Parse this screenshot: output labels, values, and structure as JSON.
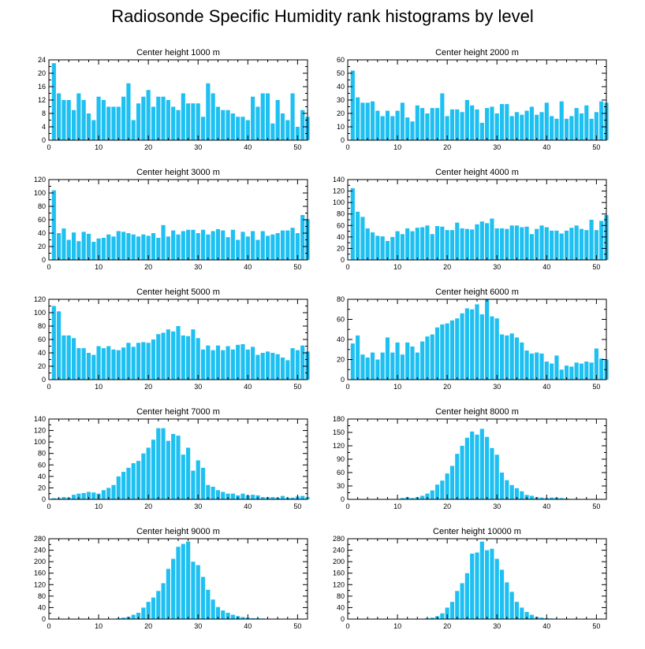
{
  "title": "Radiosonde Specific Humidity rank histograms by level",
  "bar_color": "#1ec0f2",
  "chart_data": [
    {
      "type": "bar",
      "title": "Center height 1000 m",
      "xlim": [
        0,
        52
      ],
      "xticks": [
        0,
        10,
        20,
        30,
        40,
        50
      ],
      "ylim": [
        0,
        24
      ],
      "yticks": [
        0,
        4,
        8,
        12,
        16,
        20,
        24
      ],
      "x_start": 1,
      "values": [
        23,
        14,
        12,
        12,
        9,
        14,
        12,
        8,
        6,
        13,
        12,
        10,
        10,
        10,
        13,
        17,
        6,
        11,
        13,
        15,
        10,
        13,
        13,
        12,
        10,
        9,
        14,
        11,
        11,
        11,
        7,
        17,
        14,
        10,
        9,
        9,
        8,
        7,
        7,
        6,
        13,
        10,
        14,
        14,
        5,
        12,
        8,
        6,
        14,
        4,
        9,
        7
      ]
    },
    {
      "type": "bar",
      "title": "Center height 2000 m",
      "xlim": [
        0,
        52
      ],
      "xticks": [
        0,
        10,
        20,
        30,
        40,
        50
      ],
      "ylim": [
        0,
        60
      ],
      "yticks": [
        0,
        10,
        20,
        30,
        40,
        50,
        60
      ],
      "x_start": 1,
      "values": [
        52,
        32,
        28,
        28,
        29,
        22,
        18,
        22,
        18,
        22,
        28,
        17,
        14,
        26,
        24,
        20,
        24,
        24,
        35,
        18,
        23,
        23,
        21,
        30,
        26,
        23,
        13,
        24,
        25,
        20,
        27,
        27,
        18,
        21,
        19,
        22,
        25,
        19,
        21,
        28,
        18,
        16,
        29,
        16,
        18,
        24,
        20,
        26,
        16,
        21,
        29,
        28
      ]
    },
    {
      "type": "bar",
      "title": "Center height 3000 m",
      "xlim": [
        0,
        52
      ],
      "xticks": [
        0,
        10,
        20,
        30,
        40,
        50
      ],
      "ylim": [
        0,
        120
      ],
      "yticks": [
        0,
        20,
        40,
        60,
        80,
        100,
        120
      ],
      "x_start": 1,
      "values": [
        104,
        40,
        47,
        30,
        41,
        28,
        42,
        39,
        27,
        32,
        33,
        38,
        35,
        43,
        42,
        40,
        38,
        35,
        38,
        36,
        40,
        33,
        52,
        35,
        44,
        38,
        43,
        45,
        45,
        40,
        45,
        38,
        43,
        46,
        44,
        34,
        45,
        30,
        42,
        35,
        43,
        30,
        43,
        36,
        38,
        40,
        44,
        44,
        48,
        40,
        67,
        61
      ]
    },
    {
      "type": "bar",
      "title": "Center height 4000 m",
      "xlim": [
        0,
        52
      ],
      "xticks": [
        0,
        10,
        20,
        30,
        40,
        50
      ],
      "ylim": [
        0,
        140
      ],
      "yticks": [
        0,
        20,
        40,
        60,
        80,
        100,
        120,
        140
      ],
      "x_start": 1,
      "values": [
        125,
        84,
        75,
        55,
        48,
        42,
        41,
        33,
        40,
        50,
        45,
        55,
        50,
        56,
        57,
        60,
        45,
        59,
        58,
        52,
        52,
        65,
        55,
        54,
        53,
        62,
        67,
        64,
        72,
        55,
        55,
        54,
        60,
        60,
        57,
        58,
        45,
        54,
        60,
        57,
        51,
        51,
        46,
        51,
        56,
        60,
        54,
        52,
        70,
        52,
        68,
        78
      ]
    },
    {
      "type": "bar",
      "title": "Center height 5000 m",
      "xlim": [
        0,
        52
      ],
      "xticks": [
        0,
        10,
        20,
        30,
        40,
        50
      ],
      "ylim": [
        0,
        120
      ],
      "yticks": [
        0,
        20,
        40,
        60,
        80,
        100,
        120
      ],
      "x_start": 1,
      "values": [
        110,
        102,
        66,
        66,
        62,
        47,
        47,
        40,
        37,
        50,
        47,
        50,
        45,
        44,
        48,
        55,
        49,
        55,
        56,
        55,
        60,
        68,
        70,
        75,
        72,
        80,
        66,
        65,
        75,
        62,
        45,
        51,
        44,
        51,
        44,
        50,
        45,
        52,
        53,
        45,
        49,
        37,
        40,
        42,
        40,
        38,
        33,
        29,
        47,
        44,
        51,
        42
      ]
    },
    {
      "type": "bar",
      "title": "Center height 6000 m",
      "xlim": [
        0,
        52
      ],
      "xticks": [
        0,
        10,
        20,
        30,
        40,
        50
      ],
      "ylim": [
        0,
        80
      ],
      "yticks": [
        0,
        20,
        40,
        60,
        80
      ],
      "x_start": 1,
      "values": [
        36,
        44,
        25,
        22,
        27,
        20,
        27,
        42,
        27,
        37,
        25,
        37,
        33,
        27,
        38,
        43,
        45,
        52,
        55,
        56,
        59,
        61,
        66,
        71,
        70,
        75,
        65,
        80,
        63,
        61,
        45,
        44,
        46,
        42,
        37,
        29,
        26,
        27,
        26,
        18,
        16,
        24,
        10,
        14,
        13,
        17,
        16,
        18,
        17,
        31,
        21,
        20
      ]
    },
    {
      "type": "bar",
      "title": "Center height 7000 m",
      "xlim": [
        0,
        52
      ],
      "xticks": [
        0,
        10,
        20,
        30,
        40,
        50
      ],
      "ylim": [
        0,
        140
      ],
      "yticks": [
        0,
        20,
        40,
        60,
        80,
        100,
        120,
        140
      ],
      "x_start": 1,
      "values": [
        2,
        2,
        4,
        3,
        8,
        10,
        11,
        13,
        12,
        10,
        16,
        20,
        25,
        40,
        48,
        55,
        63,
        67,
        80,
        90,
        104,
        124,
        124,
        102,
        114,
        111,
        78,
        90,
        50,
        68,
        55,
        25,
        22,
        16,
        13,
        10,
        10,
        7,
        10,
        7,
        8,
        7,
        4,
        4,
        4,
        3,
        6,
        3,
        3,
        5,
        6,
        4
      ]
    },
    {
      "type": "bar",
      "title": "Center height 8000 m",
      "xlim": [
        0,
        52
      ],
      "xticks": [
        0,
        10,
        20,
        30,
        40,
        50
      ],
      "ylim": [
        0,
        180
      ],
      "yticks": [
        0,
        30,
        60,
        90,
        120,
        150,
        180
      ],
      "x_start": 1,
      "values": [
        0,
        0,
        0,
        0,
        0,
        0,
        0,
        0,
        0,
        0,
        3,
        5,
        3,
        5,
        8,
        13,
        20,
        33,
        42,
        58,
        75,
        102,
        120,
        138,
        152,
        145,
        158,
        140,
        115,
        100,
        60,
        43,
        32,
        25,
        18,
        10,
        8,
        5,
        4,
        3,
        4,
        4,
        3,
        2,
        1,
        1,
        0,
        0,
        0,
        0,
        0,
        0
      ]
    },
    {
      "type": "bar",
      "title": "Center height 9000 m",
      "xlim": [
        0,
        52
      ],
      "xticks": [
        0,
        10,
        20,
        30,
        40,
        50
      ],
      "ylim": [
        0,
        280
      ],
      "yticks": [
        0,
        40,
        80,
        120,
        160,
        200,
        240,
        280
      ],
      "x_start": 1,
      "values": [
        0,
        0,
        0,
        0,
        0,
        0,
        0,
        0,
        0,
        0,
        0,
        0,
        0,
        3,
        5,
        8,
        15,
        22,
        40,
        60,
        75,
        98,
        125,
        175,
        210,
        252,
        262,
        270,
        200,
        188,
        147,
        102,
        68,
        42,
        30,
        22,
        15,
        10,
        7,
        5,
        3,
        3,
        2,
        1,
        1,
        0,
        0,
        0,
        0,
        0,
        0,
        0
      ]
    },
    {
      "type": "bar",
      "title": "Center height 10000 m",
      "xlim": [
        0,
        52
      ],
      "xticks": [
        0,
        10,
        20,
        30,
        40,
        50
      ],
      "ylim": [
        0,
        280
      ],
      "yticks": [
        0,
        40,
        80,
        120,
        160,
        200,
        240,
        280
      ],
      "x_start": 1,
      "values": [
        0,
        0,
        0,
        0,
        0,
        0,
        0,
        0,
        0,
        0,
        0,
        0,
        0,
        0,
        0,
        3,
        5,
        10,
        20,
        40,
        60,
        98,
        125,
        160,
        228,
        232,
        270,
        240,
        245,
        210,
        172,
        128,
        95,
        60,
        40,
        25,
        15,
        8,
        5,
        3,
        2,
        1,
        1,
        0,
        0,
        0,
        0,
        0,
        0,
        0,
        0,
        0
      ]
    }
  ]
}
